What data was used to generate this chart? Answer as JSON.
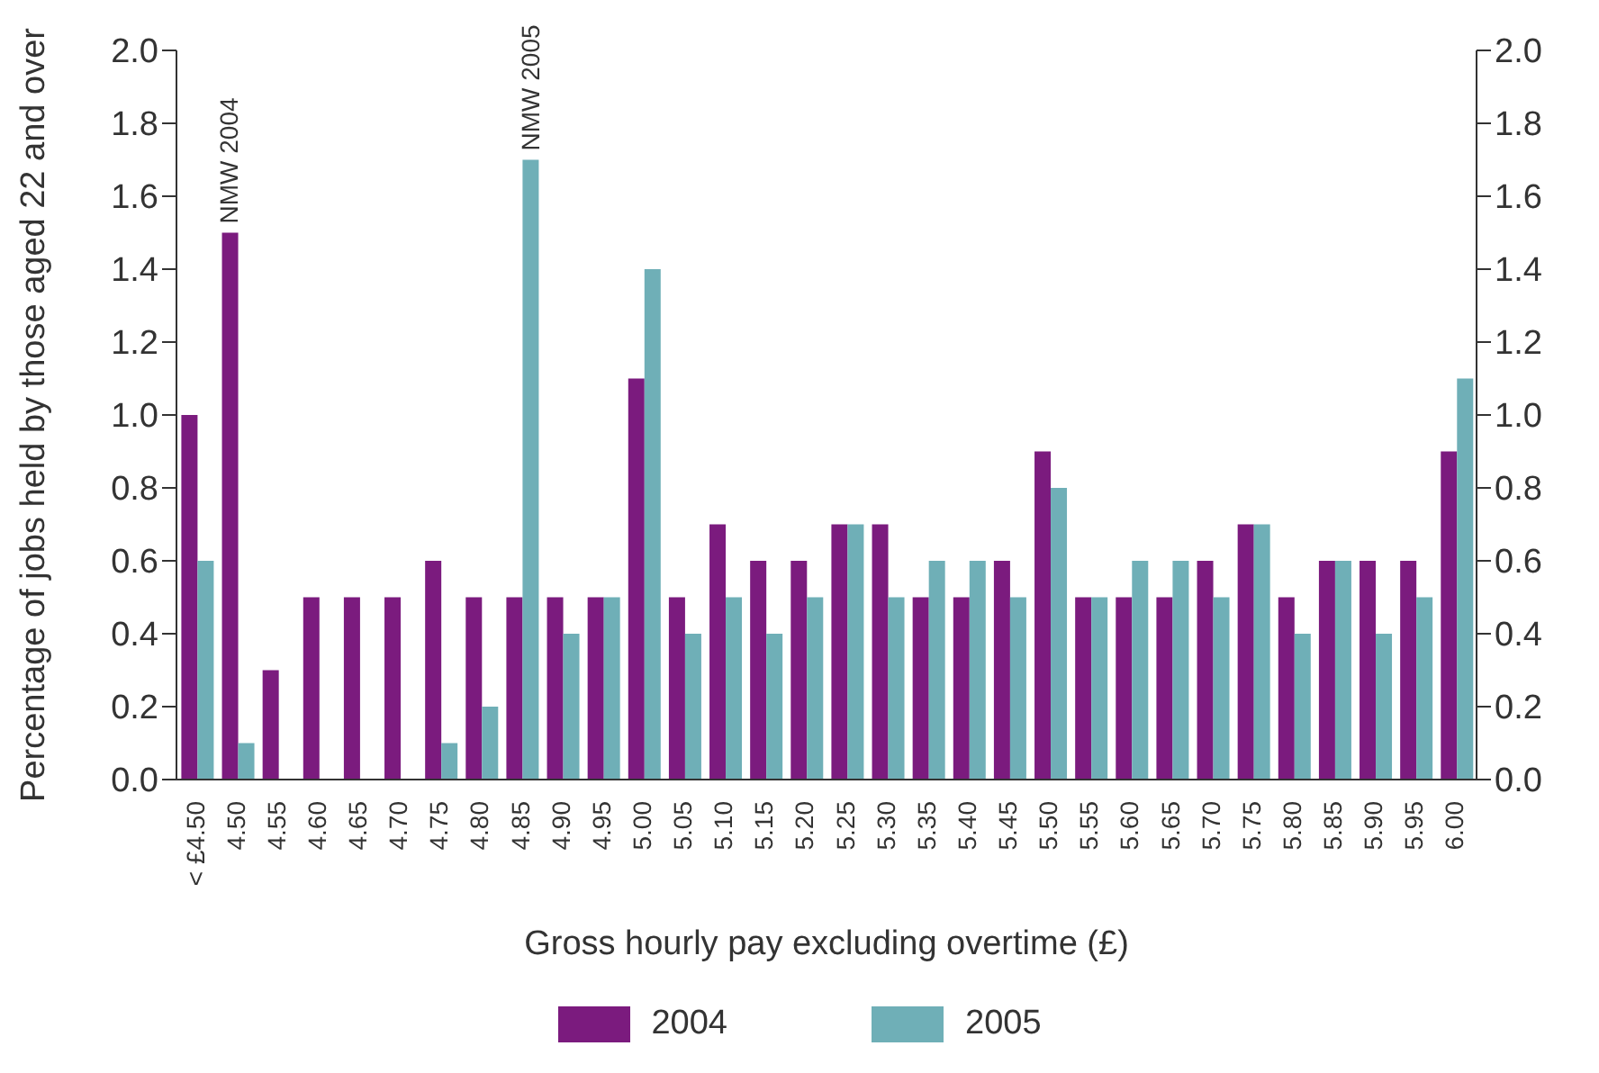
{
  "chart_data": {
    "type": "bar",
    "xlabel": "Gross hourly pay excluding overtime (£)",
    "ylabel": "Percentage of jobs held by those aged 22 and over",
    "categories": [
      "< £4.50",
      "4.50",
      "4.55",
      "4.60",
      "4.65",
      "4.70",
      "4.75",
      "4.80",
      "4.85",
      "4.90",
      "4.95",
      "5.00",
      "5.05",
      "5.10",
      "5.15",
      "5.20",
      "5.25",
      "5.30",
      "5.35",
      "5.40",
      "5.45",
      "5.50",
      "5.55",
      "5.60",
      "5.65",
      "5.70",
      "5.75",
      "5.80",
      "5.85",
      "5.90",
      "5.95",
      "6.00"
    ],
    "series": [
      {
        "name": "2004",
        "color": "#7b1b7e",
        "values": [
          1.0,
          1.5,
          0.3,
          0.5,
          0.5,
          0.5,
          0.6,
          0.5,
          0.5,
          0.5,
          0.5,
          1.1,
          0.5,
          0.7,
          0.6,
          0.6,
          0.7,
          0.7,
          0.5,
          0.5,
          0.6,
          0.9,
          0.5,
          0.5,
          0.5,
          0.6,
          0.7,
          0.5,
          0.6,
          0.6,
          0.6,
          0.9
        ]
      },
      {
        "name": "2005",
        "color": "#6fafb7",
        "values": [
          0.6,
          0.1,
          0,
          0,
          0,
          0,
          0.1,
          0.2,
          1.7,
          0.4,
          0.5,
          1.4,
          0.4,
          0.5,
          0.4,
          0.5,
          0.7,
          0.5,
          0.6,
          0.6,
          0.5,
          0.8,
          0.5,
          0.6,
          0.6,
          0.5,
          0.7,
          0.4,
          0.6,
          0.4,
          0.5,
          1.1
        ]
      }
    ],
    "ylim": [
      0,
      2
    ],
    "yticks": [
      {
        "value": 0,
        "label": "0.0"
      },
      0.2,
      0.4,
      0.6,
      0.8,
      {
        "value": 1,
        "label": "1.0"
      },
      1.2,
      1.4,
      1.6,
      1.8,
      {
        "value": 2,
        "label": "2.0"
      }
    ],
    "y2lim": [
      0,
      2
    ],
    "y2ticks": [
      {
        "value": 0,
        "label": "0.0"
      },
      0.2,
      0.4,
      0.6,
      0.8,
      {
        "value": 1,
        "label": "1.0"
      },
      1.2,
      1.4,
      1.6,
      1.8,
      {
        "value": 2,
        "label": "2.0"
      }
    ],
    "annotations": [
      {
        "text": "NMW 2004",
        "x": "4.50",
        "y": 1.5
      },
      {
        "text": "NMW 2005",
        "x": "4.85",
        "y": 1.7
      }
    ],
    "grid": false,
    "legend": "bottom"
  }
}
